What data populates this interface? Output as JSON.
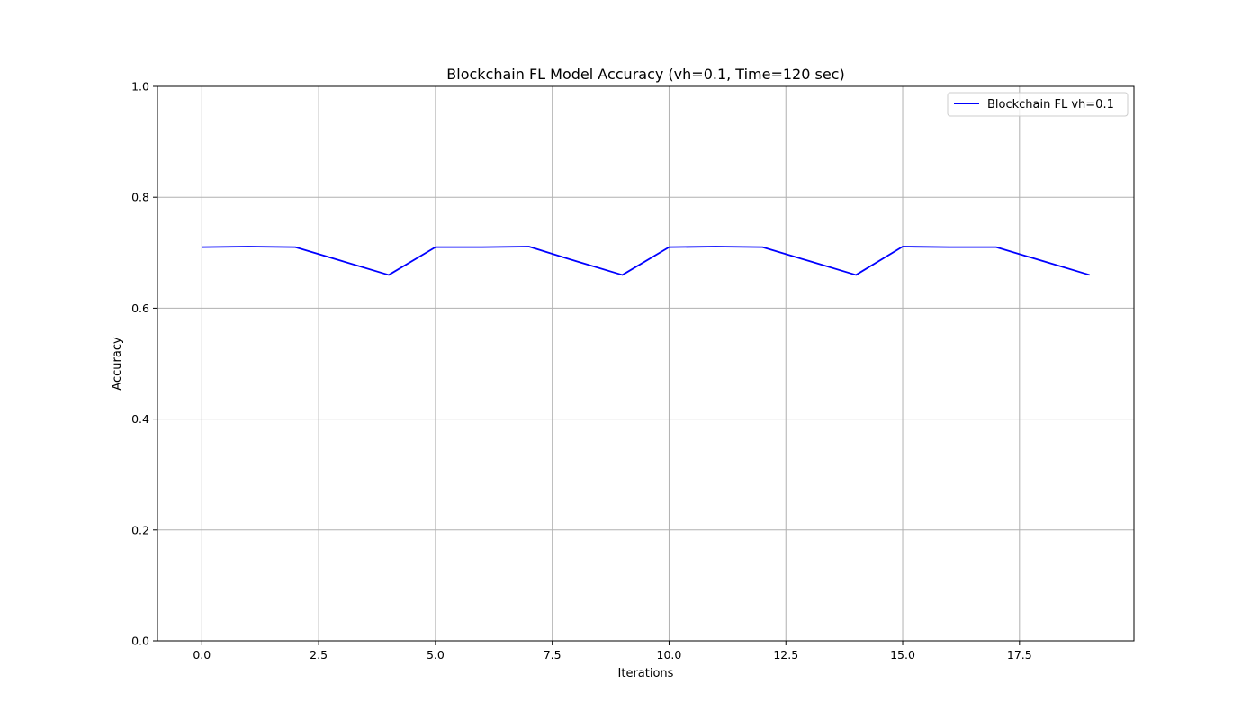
{
  "chart_data": {
    "type": "line",
    "title": "Blockchain FL Model Accuracy (vh=0.1, Time=120 sec)",
    "xlabel": "Iterations",
    "ylabel": "Accuracy",
    "xlim": [
      -0.95,
      19.95
    ],
    "ylim": [
      0.0,
      1.0
    ],
    "xticks": [
      0,
      2.5,
      5,
      7.5,
      10,
      12.5,
      15,
      17.5
    ],
    "xtick_labels": [
      "0.0",
      "2.5",
      "5.0",
      "7.5",
      "10.0",
      "12.5",
      "15.0",
      "17.5"
    ],
    "yticks": [
      0,
      0.2,
      0.4,
      0.6,
      0.8,
      1.0
    ],
    "ytick_labels": [
      "0.0",
      "0.2",
      "0.4",
      "0.6",
      "0.8",
      "1.0"
    ],
    "grid": true,
    "legend_position": "top-right",
    "series": [
      {
        "name": "Blockchain FL vh=0.1",
        "color": "#0000ff",
        "x": [
          0,
          1,
          2,
          3,
          4,
          5,
          6,
          7,
          8,
          9,
          10,
          11,
          12,
          13,
          14,
          15,
          16,
          17,
          18,
          19
        ],
        "y": [
          0.71,
          0.711,
          0.71,
          0.685,
          0.66,
          0.71,
          0.71,
          0.711,
          0.685,
          0.66,
          0.71,
          0.711,
          0.71,
          0.685,
          0.66,
          0.711,
          0.71,
          0.71,
          0.685,
          0.66
        ]
      }
    ]
  }
}
